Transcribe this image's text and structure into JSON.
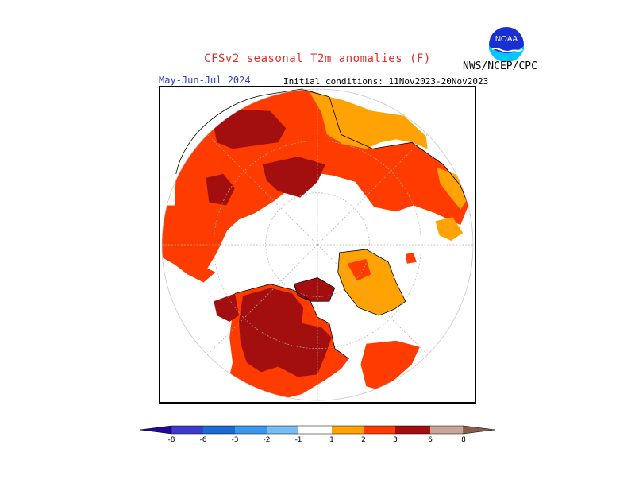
{
  "header": {
    "title": "CFSv2 seasonal T2m anomalies (F)",
    "period": "May-Jun-Jul 2024",
    "initial_conditions": "Initial conditions: 11Nov2023-20Nov2023",
    "agency": "NWS/NCEP/CPC",
    "logo_text": "NOAA"
  },
  "map": {
    "projection": "north-polar-stereographic",
    "colors": {
      "ocean": "#ffffff",
      "gt_6": "#c8a597",
      "3_to_6": "#a30f0f",
      "2_to_3": "#ff3c00",
      "1_to_2": "#ff7a22",
      "0_5_to_1": "#ffa305",
      "coast": "#000000",
      "graticule": "#b0b0b0"
    }
  },
  "legend": {
    "tick_labels": [
      "-8",
      "-6",
      "-3",
      "-2",
      "-1",
      "1",
      "2",
      "3",
      "6",
      "8"
    ],
    "colors": [
      "#210899",
      "#3d3bcc",
      "#1a6bd2",
      "#3b99ed",
      "#78bdf5",
      "#ffffff",
      "#ffa305",
      "#ff3c00",
      "#a30f0f",
      "#c8a597",
      "#8b5a4a"
    ]
  }
}
